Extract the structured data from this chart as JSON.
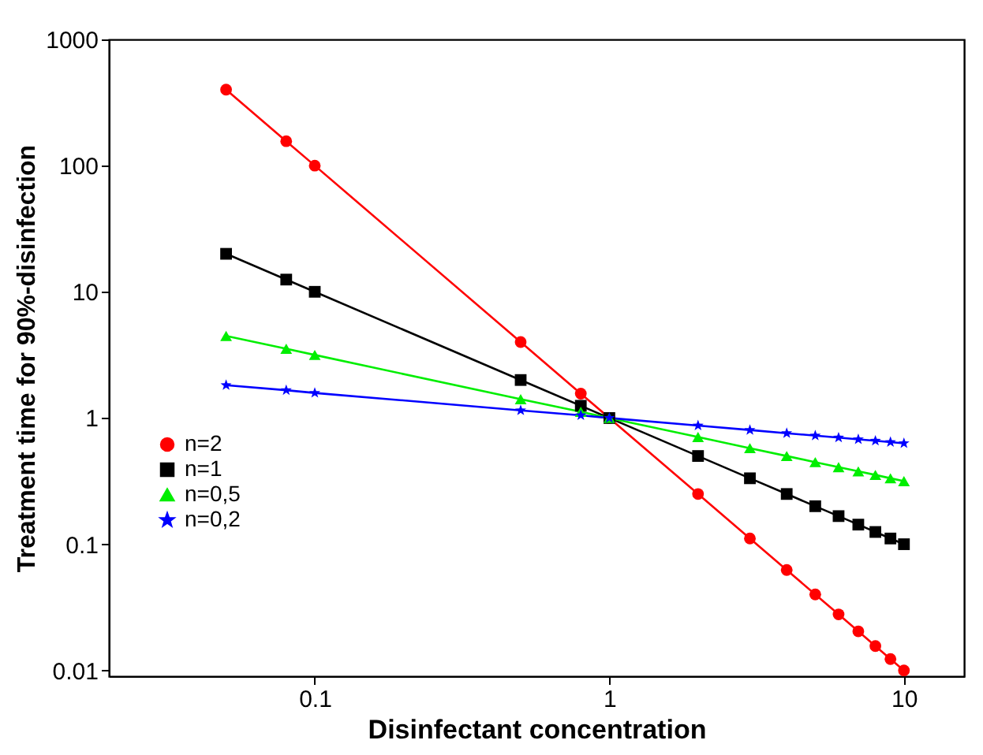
{
  "chart_data": {
    "type": "line",
    "xlabel": "Disinfectant concentration",
    "ylabel": "Treatment time for 90%-disinfection",
    "log": "xy",
    "grid": false,
    "legend": "bottom left",
    "line_style": "solid",
    "x": [
      0.05,
      0.08,
      0.1,
      0.5,
      0.8,
      1,
      2,
      3,
      4,
      5,
      6,
      7,
      8,
      9,
      10
    ],
    "xlim": [
      0.02,
      16
    ],
    "xticks": [
      0.1,
      1,
      10
    ],
    "ylim": [
      0.009,
      1000
    ],
    "yticks": [
      0.01,
      0.1,
      1,
      10,
      100,
      1000
    ],
    "series": [
      {
        "name": "n=2",
        "color": "#ff0000",
        "marker": "circle",
        "values": [
          400,
          156,
          100,
          4,
          1.56,
          1,
          0.25,
          0.111,
          0.0625,
          0.04,
          0.0278,
          0.0204,
          0.0156,
          0.0123,
          0.01
        ]
      },
      {
        "name": "n=1",
        "color": "#000000",
        "marker": "square",
        "values": [
          20,
          12.5,
          10,
          2,
          1.25,
          1,
          0.5,
          0.333,
          0.25,
          0.2,
          0.167,
          0.143,
          0.125,
          0.111,
          0.1
        ]
      },
      {
        "name": "n=0,5",
        "color": "#00ee00",
        "marker": "triangle",
        "values": [
          4.47,
          3.54,
          3.16,
          1.41,
          1.12,
          1,
          0.707,
          0.577,
          0.5,
          0.447,
          0.408,
          0.378,
          0.354,
          0.333,
          0.316
        ]
      },
      {
        "name": "n=0,2",
        "color": "#0000ff",
        "marker": "star",
        "values": [
          1.82,
          1.66,
          1.58,
          1.15,
          1.05,
          1,
          0.871,
          0.803,
          0.758,
          0.725,
          0.699,
          0.678,
          0.66,
          0.644,
          0.631
        ]
      }
    ]
  }
}
